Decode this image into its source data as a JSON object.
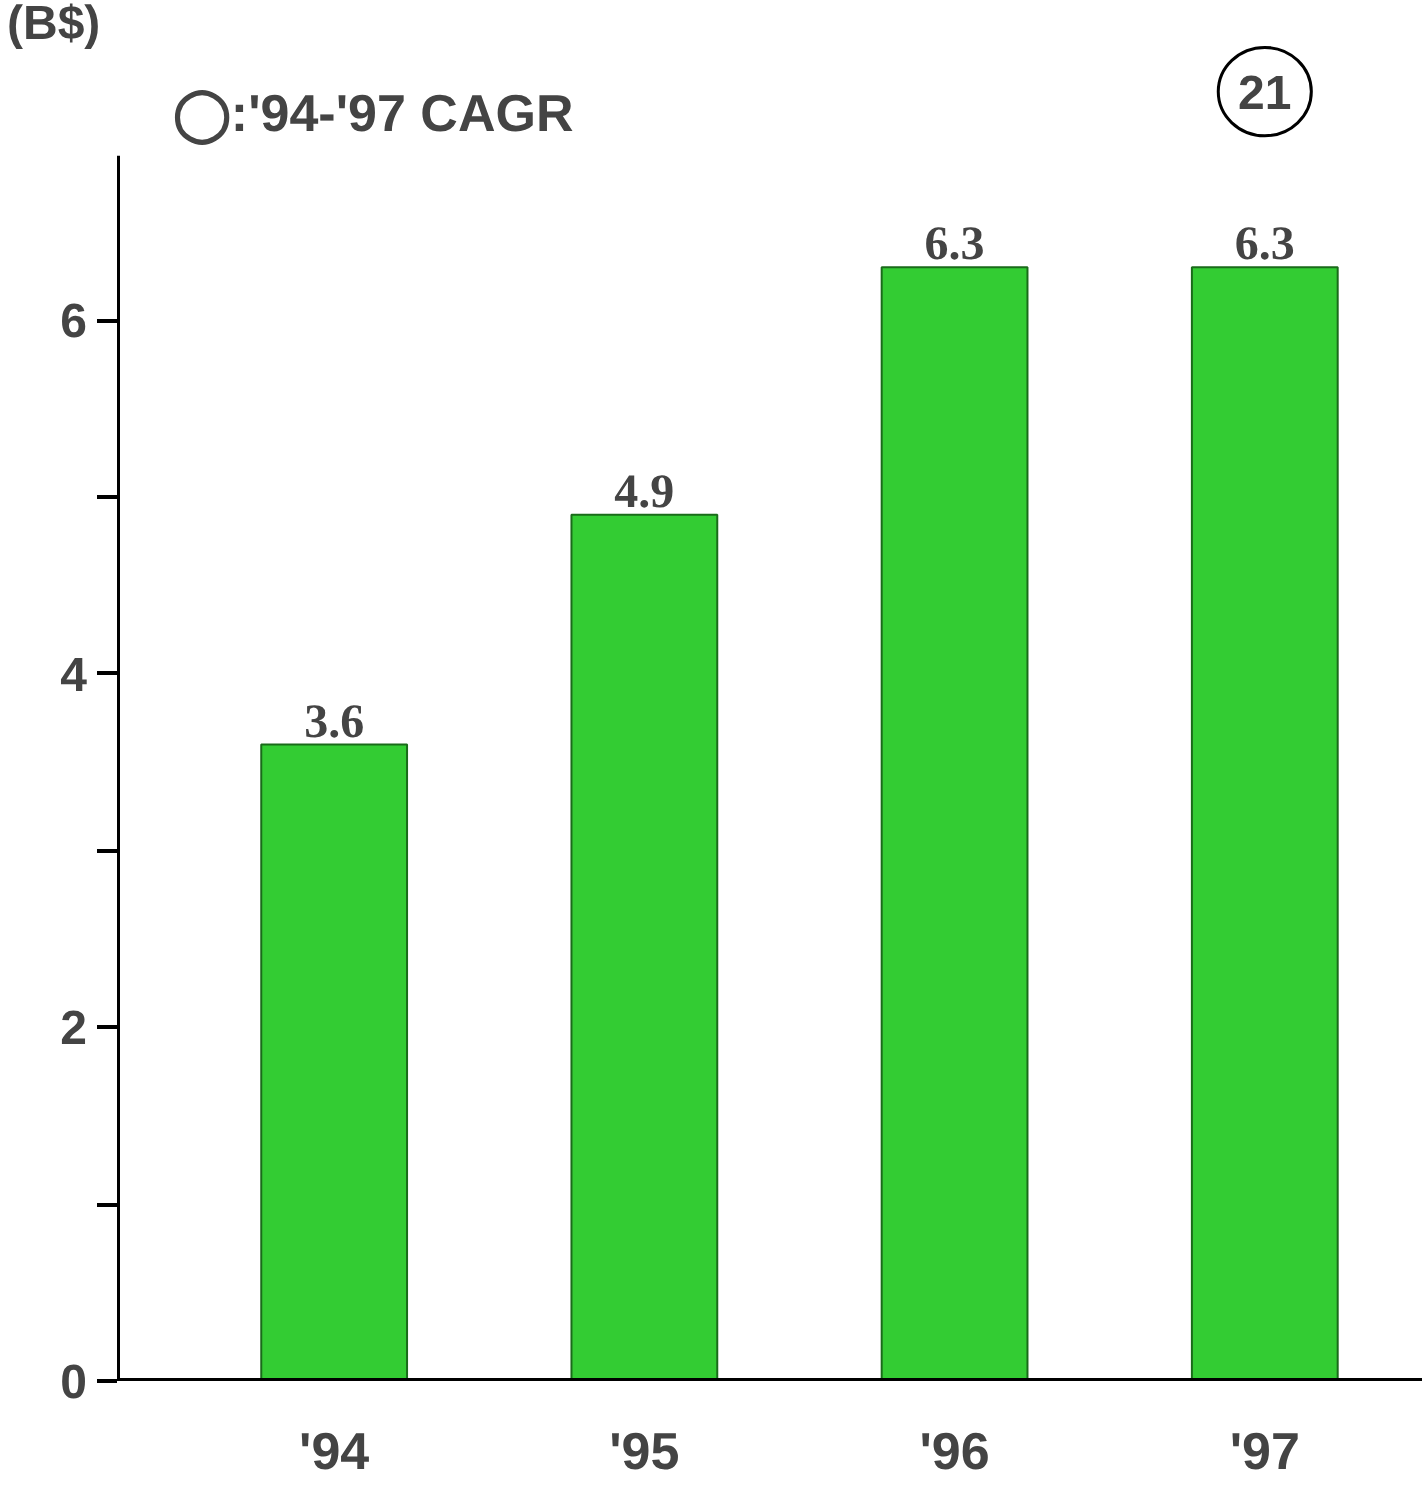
{
  "chart_data": {
    "type": "bar",
    "ylabel": "(B$)",
    "categories": [
      "'94",
      "'95",
      "'96",
      "'97"
    ],
    "values": [
      3.6,
      4.9,
      6.3,
      6.3
    ],
    "color": "#33cc33",
    "data_labels": true,
    "ylim": [
      0,
      6.93
    ],
    "yticks": [
      0,
      {
        "value": 1,
        "label": null
      },
      2,
      {
        "value": 3,
        "label": null
      },
      4,
      {
        "value": 5,
        "label": null
      },
      6
    ],
    "annotations": [
      "◯:'94-'97 CAGR",
      "21"
    ],
    "grid": false
  }
}
